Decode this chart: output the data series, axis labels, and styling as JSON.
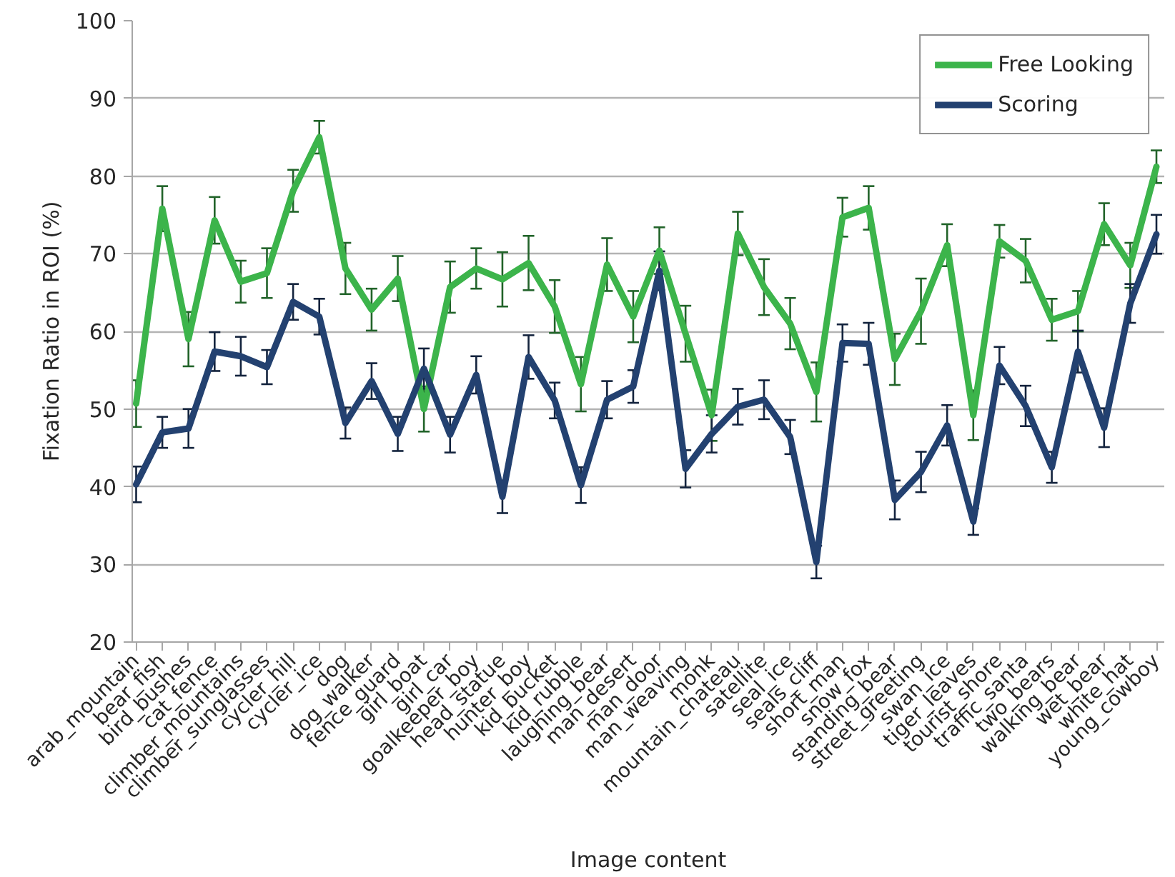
{
  "chart_data": {
    "type": "line",
    "xlabel": "Image content",
    "ylabel": "Fixation Ratio in ROI (%)",
    "categories": [
      "arab_mountain",
      "bear_fish",
      "bird_bushes",
      "cat_fence",
      "climber_mountains",
      "climber_sunglasses",
      "cycler_hill",
      "cycler_ice",
      "dog",
      "dog_walker",
      "fence_guard",
      "girl_boat",
      "girl_car",
      "goalkeeper_boy",
      "head_statue",
      "hunter_boy",
      "kid_bucket",
      "kid_rubble",
      "laughing_bear",
      "man_desert",
      "man_door",
      "man_weaving",
      "monk",
      "mountain_chateau",
      "satellite",
      "seal_ice",
      "seals_cliff",
      "short_man",
      "snow_fox",
      "standing_bear",
      "street_greeting",
      "swan_ice",
      "tiger_leaves",
      "tourist_shore",
      "traffic_santa",
      "two_bears",
      "walking_bear",
      "wet_bear",
      "white_hat",
      "young_cowboy"
    ],
    "series": [
      {
        "name": "Free Looking",
        "color": "#3cb44b",
        "values": [
          50.7,
          75.8,
          59.0,
          74.3,
          66.4,
          67.5,
          78.1,
          85.0,
          68.1,
          62.8,
          66.8,
          50.0,
          65.7,
          68.1,
          66.7,
          68.8,
          63.2,
          53.2,
          68.6,
          61.9,
          70.4,
          59.7,
          49.2,
          72.6,
          65.7,
          61.0,
          52.2,
          74.7,
          75.9,
          56.4,
          62.6,
          71.1,
          49.2,
          71.6,
          69.1,
          61.5,
          62.6,
          73.8,
          68.5,
          81.2
        ],
        "errors": [
          3.0,
          2.9,
          3.5,
          3.0,
          2.7,
          3.2,
          2.7,
          2.1,
          3.3,
          2.7,
          2.9,
          2.9,
          3.3,
          2.6,
          3.5,
          3.5,
          3.4,
          3.5,
          3.4,
          3.3,
          3.0,
          3.6,
          3.3,
          2.8,
          3.6,
          3.3,
          3.8,
          2.5,
          2.8,
          3.3,
          4.2,
          2.7,
          3.2,
          2.1,
          2.8,
          2.7,
          2.6,
          2.7,
          2.9,
          2.1
        ]
      },
      {
        "name": "Scoring",
        "color": "#234170",
        "values": [
          40.3,
          47.0,
          47.5,
          57.4,
          56.8,
          55.4,
          63.8,
          61.9,
          48.2,
          53.6,
          46.8,
          55.2,
          46.7,
          54.4,
          38.7,
          56.7,
          51.1,
          40.2,
          51.2,
          52.9,
          67.8,
          42.3,
          46.8,
          50.3,
          51.2,
          46.4,
          30.3,
          58.5,
          58.4,
          38.3,
          41.9,
          47.9,
          35.5,
          55.6,
          50.4,
          42.5,
          57.4,
          47.6,
          63.6,
          72.5
        ],
        "errors": [
          2.3,
          2.0,
          2.5,
          2.5,
          2.5,
          2.2,
          2.3,
          2.3,
          2.0,
          2.3,
          2.2,
          2.6,
          2.3,
          2.4,
          2.1,
          2.8,
          2.3,
          2.3,
          2.4,
          2.1,
          2.5,
          2.4,
          2.4,
          2.3,
          2.5,
          2.2,
          2.1,
          2.4,
          2.7,
          2.5,
          2.6,
          2.6,
          1.7,
          2.4,
          2.6,
          2.0,
          2.7,
          2.5,
          2.5,
          2.5
        ]
      }
    ],
    "ylim": [
      20,
      100
    ],
    "yticks": [
      20,
      30,
      40,
      50,
      60,
      70,
      80,
      90,
      100
    ],
    "grid": "y",
    "legend": "top right",
    "line_style": "solid"
  }
}
